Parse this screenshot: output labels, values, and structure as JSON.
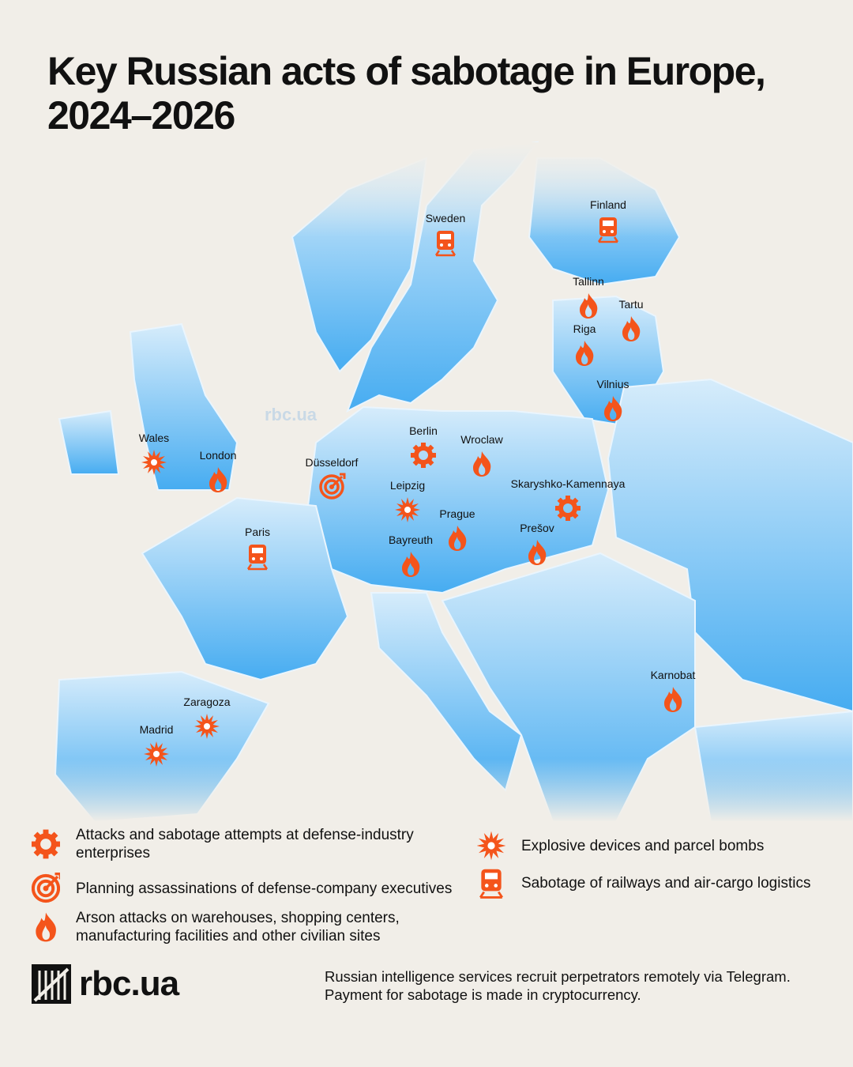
{
  "title": "Key Russian acts of sabotage in Europe, 2024–2026",
  "watermark": "rbc.ua",
  "legend": [
    {
      "text": "Attacks and sabotage attempts at defense-industry enterprises",
      "places": [
        "Berlin",
        "Skaryshko-Kamennaya"
      ]
    },
    {
      "text": "Planning assassinations of defense-company executives",
      "places": [
        "Düsseldorf"
      ]
    },
    {
      "text": "Arson attacks on warehouses, shopping centers, manufacturing facilities and other civilian sites",
      "places": [
        "London",
        "Wroclaw",
        "Prague",
        "Prešov",
        "Bayreuth",
        "Tallinn",
        "Tartu",
        "Riga",
        "Vilnius",
        "Karnobat"
      ]
    },
    {
      "text": "Explosive devices and parcel bombs",
      "places": [
        "Wales",
        "Leipzig",
        "Zaragoza",
        "Madrid"
      ]
    },
    {
      "text": "Sabotage of railways and air-cargo logistics",
      "places": [
        "Sweden",
        "Finland",
        "Paris"
      ]
    }
  ],
  "logo": "rbc.ua",
  "note": [
    "Russian intelligence services recruit perpetrators remotely via Telegram.",
    "Payment for sabotage is made in cryptocurrency."
  ]
}
